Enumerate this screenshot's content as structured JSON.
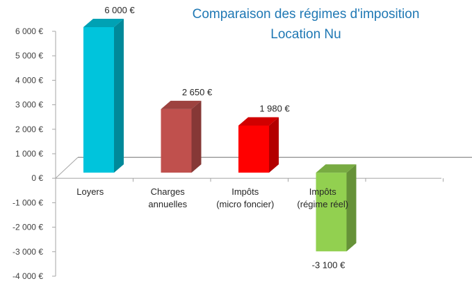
{
  "chart_data": {
    "type": "bar",
    "title": "Comparaison des régimes d'imposition",
    "subtitle": "Location Nu",
    "categories": [
      [
        "Loyers"
      ],
      [
        "Charges",
        "annuelles"
      ],
      [
        "Impôts",
        "(micro foncier)"
      ],
      [
        "Impôts",
        "(régime réel)"
      ]
    ],
    "values": [
      6000,
      2650,
      1980,
      -3100
    ],
    "data_labels": [
      "6 000 €",
      "2 650 €",
      "1 980 €",
      "-3 100 €"
    ],
    "colors": [
      "#00c4dc",
      "#c0504d",
      "#ff0000",
      "#92d050"
    ],
    "ylim": [
      -4000,
      6000
    ],
    "yticks": [
      6000,
      5000,
      4000,
      3000,
      2000,
      1000,
      0,
      -1000,
      -2000,
      -3000,
      -4000
    ],
    "ytick_labels": [
      "6 000 €",
      "5 000 €",
      "4 000 €",
      "3 000 €",
      "2 000 €",
      "1 000 €",
      "0 €",
      "-1 000 €",
      "-2 000 €",
      "-3 000 €",
      "-4 000 €"
    ],
    "style": "3d-bar",
    "grid": false,
    "legend": "none"
  }
}
